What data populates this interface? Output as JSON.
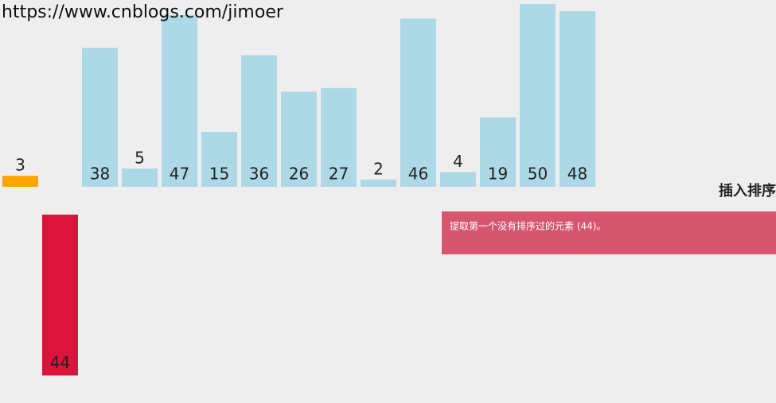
{
  "url": "https://www.cnblogs.com/jimoer",
  "chart_data": {
    "type": "bar",
    "title": "插入排序",
    "status": "提取第一个没有排序过的元素 (44)。",
    "values": [
      3,
      44,
      38,
      5,
      47,
      15,
      36,
      26,
      27,
      2,
      46,
      4,
      19,
      50,
      48
    ],
    "colors": [
      "#ffa500",
      "#dc143c",
      "#add8e6",
      "#add8e6",
      "#add8e6",
      "#add8e6",
      "#add8e6",
      "#add8e6",
      "#add8e6",
      "#add8e6",
      "#add8e6",
      "#add8e6",
      "#add8e6",
      "#add8e6",
      "#add8e6"
    ],
    "lifted": [
      false,
      true,
      false,
      false,
      false,
      false,
      false,
      false,
      false,
      false,
      false,
      false,
      false,
      false,
      false
    ],
    "status_color": "#d6566f"
  }
}
